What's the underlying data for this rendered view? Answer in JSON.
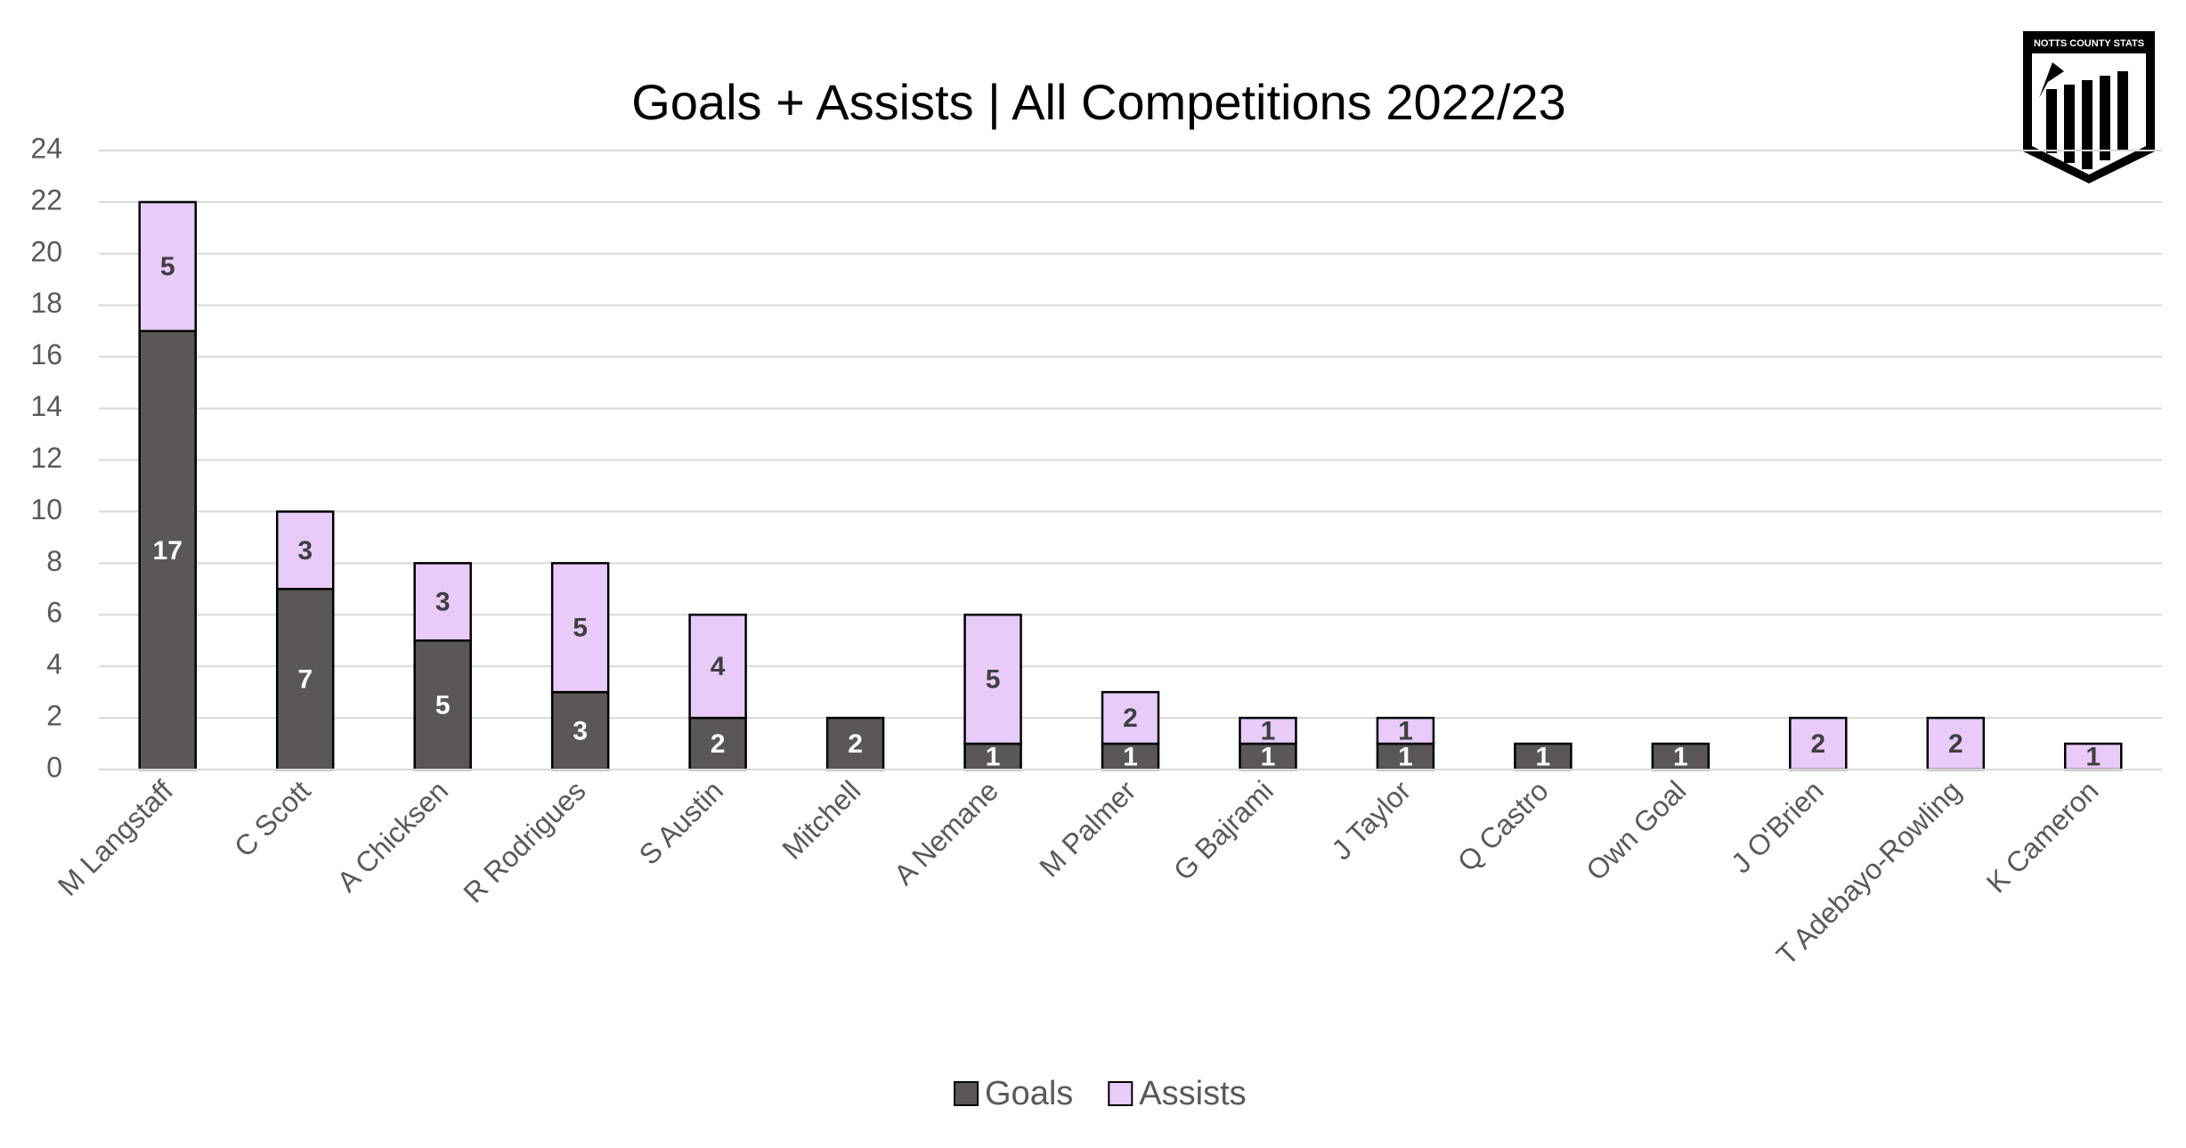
{
  "chart_data": {
    "type": "stacked-bar",
    "title": "Goals + Assists | All Competitions 2022/23",
    "logo_text": "NOTTS COUNTY STATS",
    "categories": [
      "M Langstaff",
      "C Scott",
      "A Chicksen",
      "R Rodrigues",
      "S Austin",
      "Mitchell",
      "A Nemane",
      "M Palmer",
      "G Bajrami",
      "J Taylor",
      "Q Castro",
      "Own Goal",
      "J O'Brien",
      "T Adebayo-Rowling",
      "K Cameron"
    ],
    "series": [
      {
        "name": "Goals",
        "color": "#5c5757",
        "label_color": "#ffffff",
        "values": [
          17,
          7,
          5,
          3,
          2,
          2,
          1,
          1,
          1,
          1,
          1,
          1,
          0,
          0,
          0
        ]
      },
      {
        "name": "Assists",
        "color": "#e9cbf9",
        "label_color": "#3f3f3f",
        "values": [
          5,
          3,
          3,
          5,
          4,
          0,
          5,
          2,
          1,
          1,
          0,
          0,
          2,
          2,
          1
        ]
      }
    ],
    "ylim": [
      0,
      24
    ],
    "yticks": [
      0,
      2,
      4,
      6,
      8,
      10,
      12,
      14,
      16,
      18,
      20,
      22,
      24
    ],
    "grid": true,
    "legend": "bottom"
  }
}
